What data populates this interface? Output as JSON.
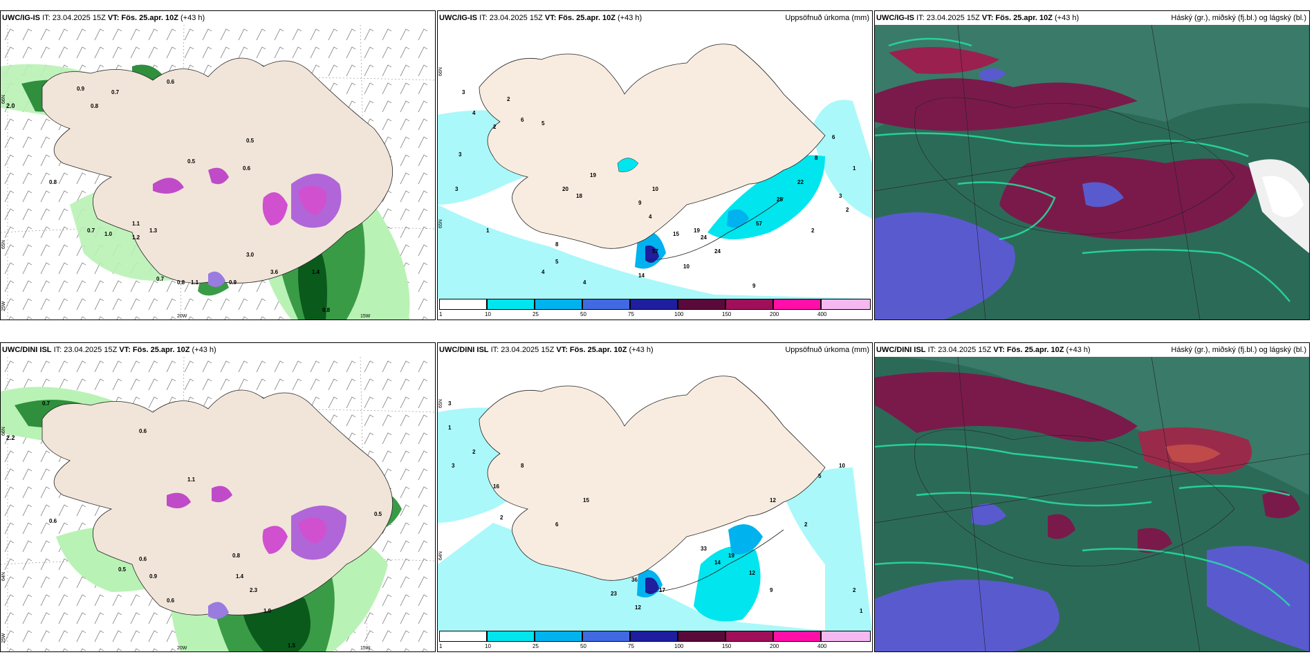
{
  "rows": [
    {
      "model": "UWC/IG-IS",
      "it": "IT: 23.04.2025 15Z",
      "vt": "VT: Fös. 25.apr. 10Z",
      "lead": "(+43 h)"
    },
    {
      "model": "UWC/DINI ISL",
      "it": "IT: 23.04.2025 15Z",
      "vt": "VT: Fös. 25.apr. 10Z",
      "lead": "(+43 h)"
    }
  ],
  "precip_title": "Uppsöfnuð úrkoma (mm)",
  "cloud_title": "Háský (gr.), miðský (fj.bl.) og lágský (bl.)",
  "colorbar": {
    "ticks": [
      "1",
      "10",
      "25",
      "50",
      "75",
      "100",
      "150",
      "200",
      "400"
    ],
    "colors": [
      "#ffffff",
      "#00e5ee",
      "#00b2ee",
      "#4169e1",
      "#1e1e9e",
      "#5a0a3a",
      "#a0105a",
      "#ff0fa8",
      "#f5b8f0"
    ]
  },
  "axis": {
    "lat66": "66N",
    "lat65": "65N",
    "lat64": "64N",
    "lon25": "25W",
    "lon20": "20W",
    "lon15": "15W"
  },
  "top_wind_values": [
    "2.0",
    "0.9",
    "0.8",
    "0.7",
    "0.6",
    "0.5",
    "0.8",
    "1.1",
    "1.3",
    "0.7",
    "1.0",
    "1.2",
    "0.7",
    "0.8",
    "1.1",
    "3.0",
    "0.9",
    "1.4",
    "3.6",
    "0.8",
    "0.9"
  ],
  "bot_wind_values": [
    "0.7",
    "2.2",
    "0.6",
    "1.1",
    "0.6",
    "0.8",
    "1.4",
    "2.3",
    "1.9",
    "1.5",
    "0.6",
    "0.5",
    "0.6",
    "0.9",
    "0.5"
  ],
  "top_precip_values": [
    "3",
    "4",
    "2",
    "6",
    "5",
    "3",
    "1",
    "2",
    "3",
    "4",
    "18",
    "20",
    "10",
    "9",
    "4",
    "15",
    "19",
    "24",
    "57",
    "25",
    "22",
    "2",
    "3",
    "2",
    "1",
    "8",
    "6",
    "10",
    "9",
    "5",
    "4"
  ],
  "bot_precip_values": [
    "3",
    "1",
    "2",
    "3",
    "8",
    "16",
    "15",
    "2",
    "6",
    "33",
    "14",
    "19",
    "12",
    "2",
    "5",
    "9",
    "10",
    "12",
    "23",
    "36",
    "17",
    "12",
    "2",
    "1"
  ]
}
